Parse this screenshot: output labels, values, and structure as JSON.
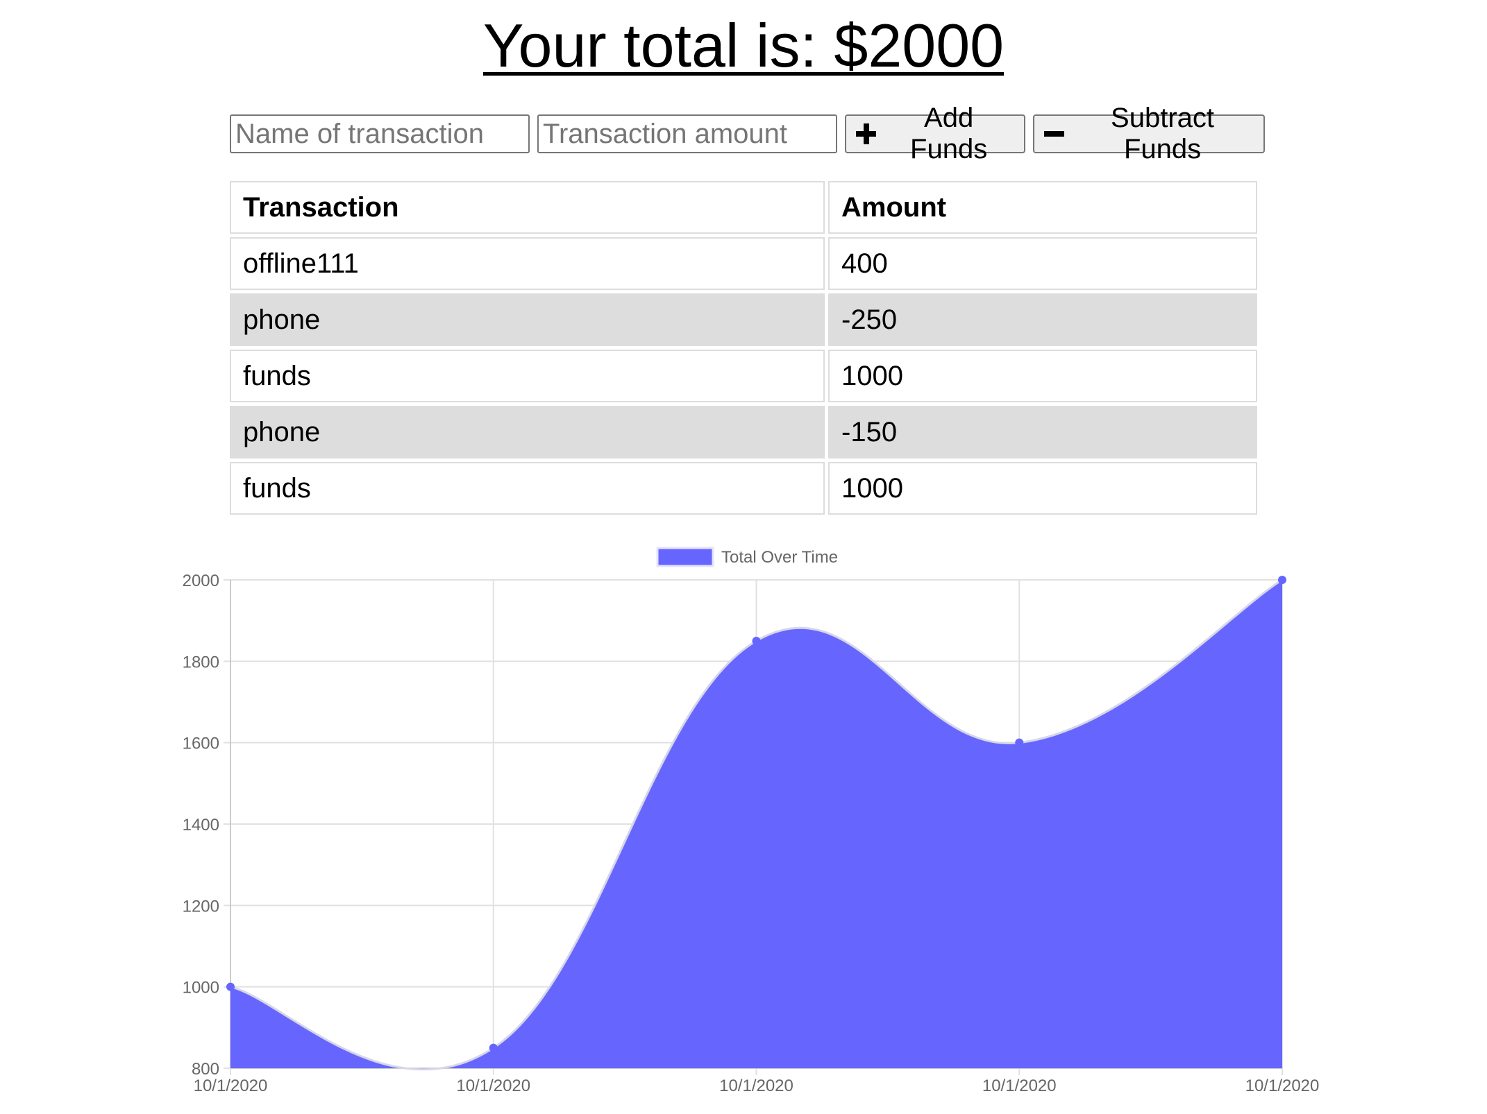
{
  "header": {
    "title": "Your total is: $2000"
  },
  "form": {
    "name_placeholder": "Name of transaction",
    "amount_placeholder": "Transaction amount",
    "add_label": "Add Funds",
    "subtract_label": "Subtract Funds"
  },
  "table": {
    "columns": [
      "Transaction",
      "Amount"
    ],
    "rows": [
      {
        "name": "offline111",
        "amount": "400"
      },
      {
        "name": "phone",
        "amount": "-250"
      },
      {
        "name": "funds",
        "amount": "1000"
      },
      {
        "name": "phone",
        "amount": "-150"
      },
      {
        "name": "funds",
        "amount": "1000"
      }
    ]
  },
  "chart_data": {
    "type": "area",
    "title": "",
    "xlabel": "",
    "ylabel": "",
    "x": [
      "10/1/2020",
      "10/1/2020",
      "10/1/2020",
      "10/1/2020",
      "10/1/2020"
    ],
    "series": [
      {
        "name": "Total Over Time",
        "values": [
          1000,
          850,
          1850,
          1600,
          2000
        ],
        "color": "#6666ff"
      }
    ],
    "ylim": [
      800,
      2000
    ],
    "yticks": [
      800,
      1000,
      1200,
      1400,
      1600,
      1800,
      2000
    ],
    "grid": true,
    "legend": "top-center"
  }
}
